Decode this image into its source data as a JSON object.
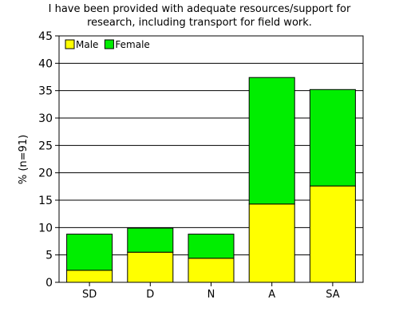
{
  "chart_data": {
    "type": "bar",
    "stacked": true,
    "title_lines": [
      "I have been provided with adequate resources/support for",
      "research, including transport for field work."
    ],
    "xlabel": "",
    "ylabel": "% (n=91)",
    "categories": [
      "SD",
      "D",
      "N",
      "A",
      "SA"
    ],
    "series": [
      {
        "name": "Male",
        "color": "#ffff00",
        "values": [
          2.2,
          5.5,
          4.4,
          14.3,
          17.6
        ]
      },
      {
        "name": "Female",
        "color": "#00ee00",
        "values": [
          6.6,
          4.4,
          4.4,
          23.1,
          17.6
        ]
      }
    ],
    "ylim": [
      0,
      45
    ],
    "yticks": [
      0,
      5,
      10,
      15,
      20,
      25,
      30,
      35,
      40,
      45
    ],
    "grid": true,
    "legend_position": "top-left"
  }
}
